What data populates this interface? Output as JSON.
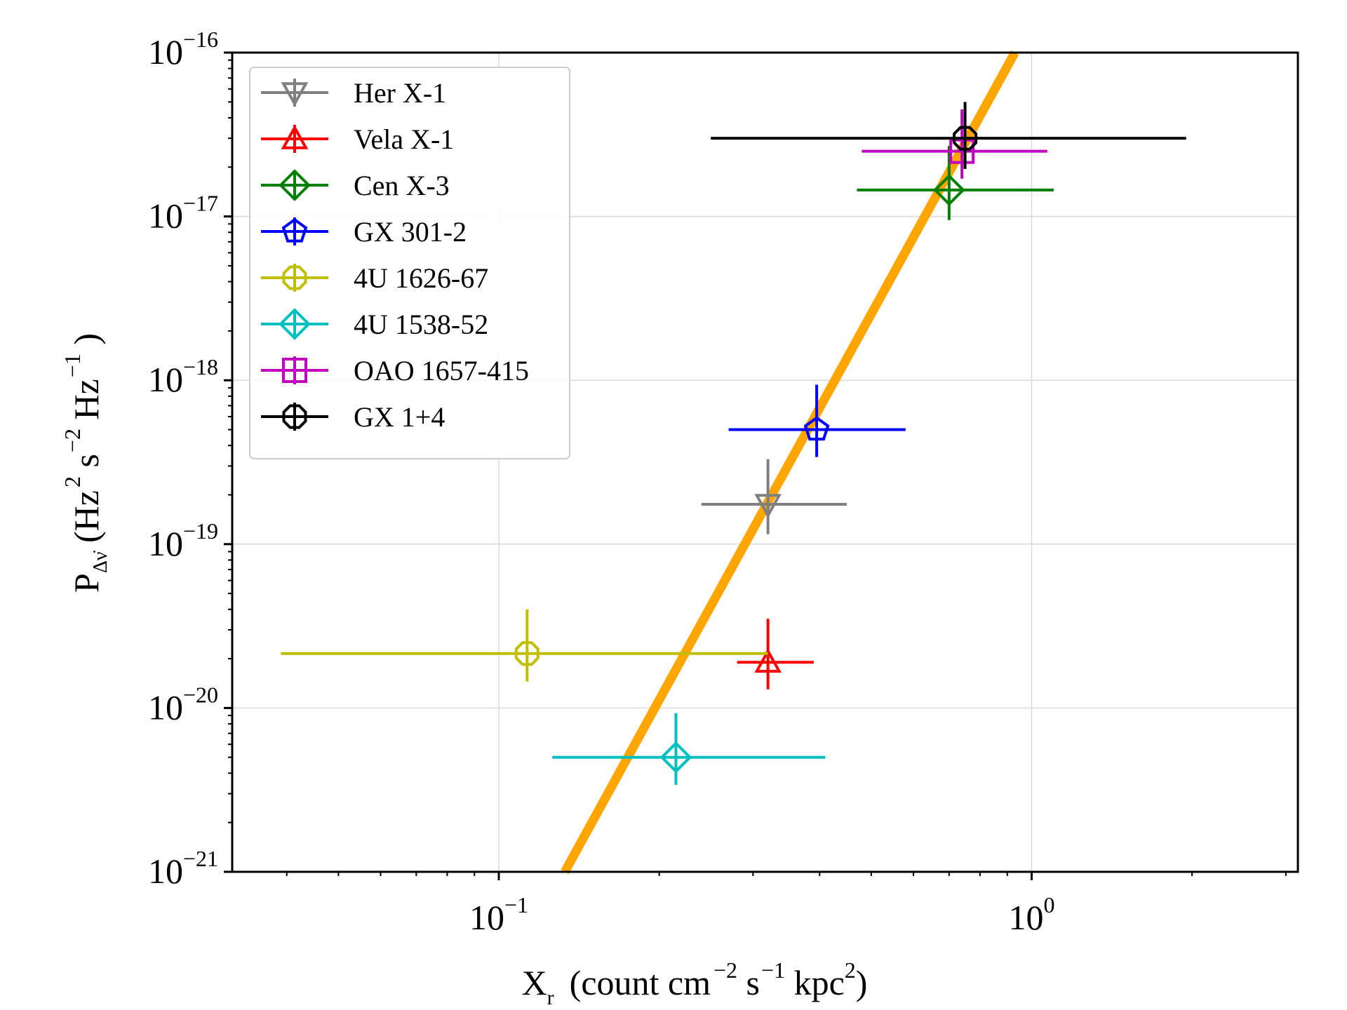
{
  "chart_data": {
    "type": "scatter",
    "title": "",
    "xscale": "log",
    "yscale": "log",
    "xlim": [
      0.0316,
      3.16
    ],
    "ylim": [
      1e-21,
      1e-16
    ],
    "grid": true,
    "legend_position": "top-left",
    "xlabel_parts": {
      "main": "X",
      "sub": "r",
      "rest_open": "(count cm",
      "exp1": "−2",
      "s": " s",
      "exp2": "−1",
      "kpc": " kpc",
      "exp3": "2",
      "close": ")"
    },
    "ylabel_parts": {
      "main": "P",
      "sub": "Δν̇",
      "open": " (Hz",
      "exp1": "2",
      "s": " s",
      "exp2": "−2",
      "hz": " Hz",
      "exp3": "−1",
      "close": " )"
    },
    "xtick_labels": [
      {
        "value": 0.1,
        "base": "10",
        "exp": "−1"
      },
      {
        "value": 1,
        "base": "10",
        "exp": "0"
      }
    ],
    "ytick_labels": [
      {
        "value": 1e-16,
        "base": "10",
        "exp": "−16"
      },
      {
        "value": 1e-17,
        "base": "10",
        "exp": "−17"
      },
      {
        "value": 1e-18,
        "base": "10",
        "exp": "−18"
      },
      {
        "value": 1e-19,
        "base": "10",
        "exp": "−19"
      },
      {
        "value": 1e-20,
        "base": "10",
        "exp": "−20"
      },
      {
        "value": 1e-21,
        "base": "10",
        "exp": "−21"
      }
    ],
    "fit_line": {
      "color": "#ffa500",
      "points": [
        [
          0.133,
          1e-21
        ],
        [
          0.93,
          1e-16
        ]
      ]
    },
    "series": [
      {
        "name": "Her X-1",
        "color": "#808080",
        "marker": "triangle-down",
        "x": 0.32,
        "x_err": [
          0.24,
          0.45
        ],
        "y": 1.75e-19,
        "y_err": [
          1.15e-19,
          3.3e-19
        ]
      },
      {
        "name": "Vela X-1",
        "color": "#ff0000",
        "marker": "triangle-up",
        "x": 0.32,
        "x_err": [
          0.28,
          0.39
        ],
        "y": 1.9e-20,
        "y_err": [
          1.3e-20,
          3.5e-20
        ]
      },
      {
        "name": "Cen X-3",
        "color": "#008000",
        "marker": "diamond",
        "x": 0.7,
        "x_err": [
          0.47,
          1.1
        ],
        "y": 1.45e-17,
        "y_err": [
          9.5e-18,
          2.7e-17
        ]
      },
      {
        "name": "GX 301-2",
        "color": "#0000ff",
        "marker": "pentagon",
        "x": 0.395,
        "x_err": [
          0.27,
          0.58
        ],
        "y": 5e-19,
        "y_err": [
          3.4e-19,
          9.4e-19
        ]
      },
      {
        "name": "4U 1626-67",
        "color": "#bfbf00",
        "marker": "octagon",
        "x": 0.113,
        "x_err": [
          0.039,
          0.32
        ],
        "y": 2.15e-20,
        "y_err": [
          1.45e-20,
          4e-20
        ]
      },
      {
        "name": "4U 1538-52",
        "color": "#00bfbf",
        "marker": "diamond",
        "x": 0.215,
        "x_err": [
          0.126,
          0.41
        ],
        "y": 5e-21,
        "y_err": [
          3.4e-21,
          9.3e-21
        ]
      },
      {
        "name": "OAO 1657-415",
        "color": "#bf00bf",
        "marker": "square",
        "x": 0.74,
        "x_err": [
          0.48,
          1.07
        ],
        "y": 2.5e-17,
        "y_err": [
          1.7e-17,
          4.5e-17
        ]
      },
      {
        "name": "GX 1+4",
        "color": "#000000",
        "marker": "octagon",
        "x": 0.75,
        "x_err": [
          0.25,
          1.95
        ],
        "y": 3e-17,
        "y_err": [
          1.95e-17,
          5e-17
        ]
      }
    ]
  }
}
